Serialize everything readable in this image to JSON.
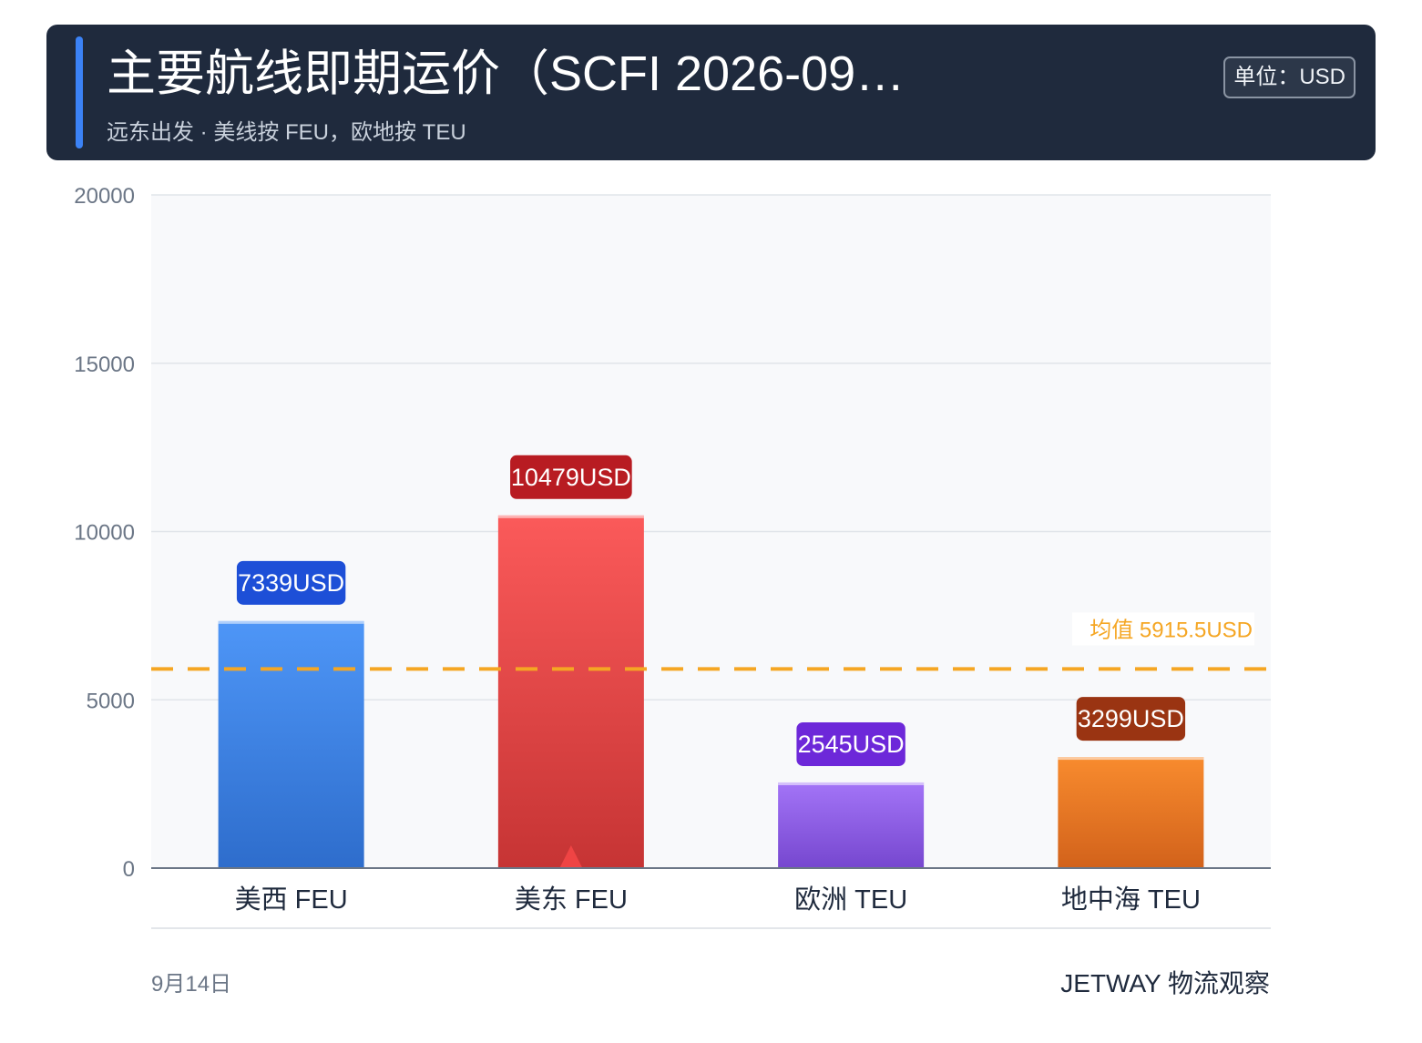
{
  "header": {
    "title": "主要航线即期运价（SCFI 2026-09…",
    "subtitle": "远东出发 · 美线按 FEU，欧地按 TEU",
    "unit": "单位：USD"
  },
  "chart_data": {
    "type": "bar",
    "categories": [
      "美西 FEU",
      "美东 FEU",
      "欧洲 TEU",
      "地中海 TEU"
    ],
    "values": [
      7339,
      10479,
      2545,
      3299
    ],
    "value_labels": [
      "7339USD",
      "10479USD",
      "2545USD",
      "3299USD"
    ],
    "ylim": [
      0,
      20000
    ],
    "yticks": [
      "0",
      "5000",
      "10000",
      "15000",
      "20000"
    ],
    "grid": true,
    "mean": {
      "value": 5915.5,
      "label": "均值 5915.5USD",
      "color": "#f5a623"
    },
    "highlight_max_category": "美东 FEU",
    "colors": {
      "bars": [
        [
          "#4e96f7",
          "#2e6dcc"
        ],
        [
          "#fb5a5a",
          "#c63434"
        ],
        [
          "#a374f7",
          "#7647cf"
        ],
        [
          "#f88b2e",
          "#d2621b"
        ]
      ],
      "labels": [
        "#1d4fd7",
        "#b81c22",
        "#6d28d9",
        "#9a3412"
      ],
      "marker": "#ef4444"
    }
  },
  "footer": {
    "date": "9月14日",
    "brand": "JETWAY 物流观察"
  }
}
